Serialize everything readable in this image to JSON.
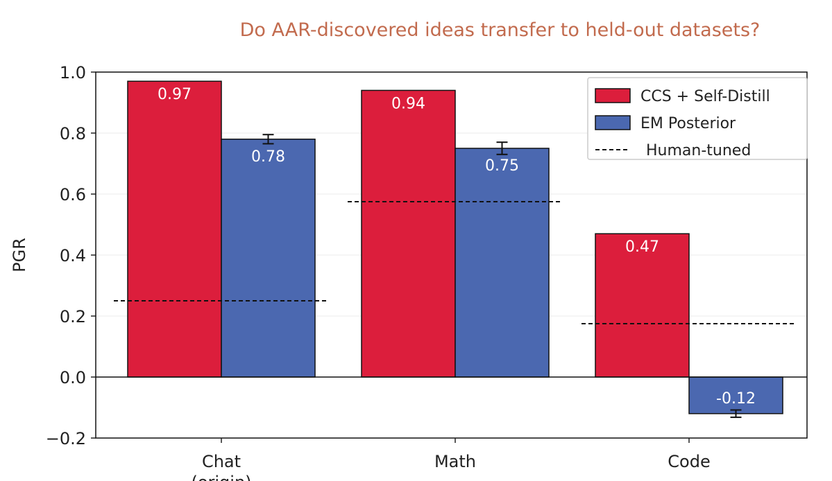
{
  "chart_data": {
    "type": "bar",
    "title": "Do AAR-discovered ideas transfer to held-out datasets?",
    "ylabel": "PGR",
    "xlabel": "",
    "ylim": [
      -0.2,
      1.0
    ],
    "yticks": [
      -0.2,
      0.0,
      0.2,
      0.4,
      0.6,
      0.8,
      1.0
    ],
    "ytick_labels": [
      "−0.2",
      "0.0",
      "0.2",
      "0.4",
      "0.6",
      "0.8",
      "1.0"
    ],
    "categories": [
      "Chat",
      "Math",
      "Code"
    ],
    "category_sublabels": [
      "(origin)",
      "",
      ""
    ],
    "series": [
      {
        "name": "CCS + Self-Distill",
        "color": "#dc1e3c",
        "values": [
          0.97,
          0.94,
          0.47
        ],
        "labels": [
          "0.97",
          "0.94",
          "0.47"
        ],
        "errors": [
          null,
          null,
          null
        ]
      },
      {
        "name": "EM Posterior",
        "color": "#4b68b0",
        "values": [
          0.78,
          0.75,
          -0.12
        ],
        "labels": [
          "0.78",
          "0.75",
          "-0.12"
        ],
        "errors": [
          0.015,
          0.02,
          0.012
        ]
      }
    ],
    "reference": {
      "name": "Human-tuned",
      "style": "dashed",
      "color": "#111111",
      "values": [
        0.25,
        0.575,
        0.175
      ]
    },
    "legend": {
      "placement": "top-right"
    },
    "grid": {
      "y": true,
      "x": false
    }
  }
}
